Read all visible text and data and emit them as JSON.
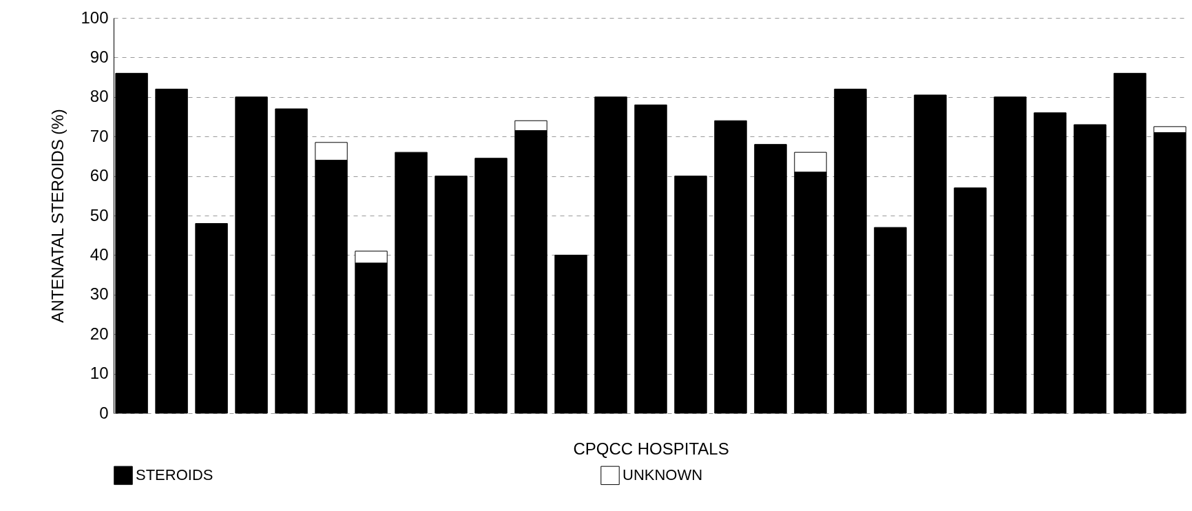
{
  "chart_data": {
    "type": "bar",
    "stacked": true,
    "xlabel": "CPQCC HOSPITALS",
    "ylabel": "ANTENATAL STEROIDS (%)",
    "categories": [
      null,
      null,
      null,
      null,
      null,
      null,
      null,
      null,
      null,
      null,
      null,
      null,
      null,
      null,
      null,
      null,
      null,
      null,
      null,
      null,
      null,
      null,
      null,
      null,
      null,
      null,
      null
    ],
    "series": [
      {
        "name": "STEROIDS",
        "color": "#000000",
        "values": [
          86,
          82,
          48,
          80,
          77,
          64,
          38,
          66,
          60,
          64.5,
          71.5,
          40,
          80,
          78,
          60,
          74,
          68,
          61,
          82,
          47,
          80.5,
          57,
          80,
          76,
          73,
          86,
          71
        ]
      },
      {
        "name": "UNKNOWN",
        "color": "#ffffff",
        "values": [
          null,
          null,
          null,
          null,
          null,
          4.5,
          3,
          null,
          null,
          null,
          2.5,
          null,
          null,
          null,
          null,
          null,
          null,
          5,
          null,
          null,
          null,
          null,
          null,
          null,
          null,
          null,
          1.5
        ]
      }
    ],
    "ylim": [
      0,
      100
    ],
    "yticks": [
      0,
      10,
      20,
      30,
      40,
      50,
      60,
      70,
      80,
      90,
      100
    ],
    "grid": "y",
    "legend": "bottom"
  }
}
